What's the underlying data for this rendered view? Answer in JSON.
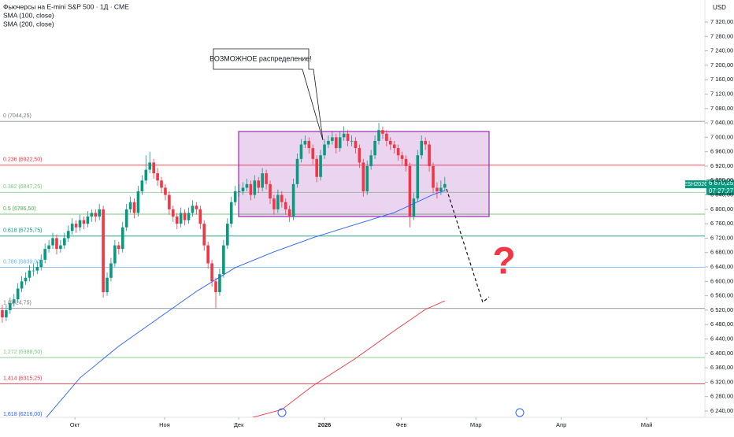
{
  "chart_data": {
    "type": "candlestick",
    "header": [
      "Фьючерсы на E-mini S&P 500 · 1Д · CME",
      "SMA (100, close)",
      "SMA (200, close)"
    ],
    "currency": "USD",
    "symbol": "ESH2026",
    "last_price_label": "6 870,25",
    "countdown": "07:27:27",
    "annotation": "ВОЗМОЖНОЕ распределение!",
    "question": "?",
    "xlim": [
      -0.6,
      181
    ],
    "xticks": [
      {
        "value": 18.7,
        "label": "Окт"
      },
      {
        "value": 41.8,
        "label": "Ноя"
      },
      {
        "value": 60.9,
        "label": "Дек"
      },
      {
        "value": 83,
        "label": "2026"
      },
      {
        "value": 102.8,
        "label": "Фев"
      },
      {
        "value": 122,
        "label": "Мар"
      },
      {
        "value": 144,
        "label": "Апр"
      },
      {
        "value": 166,
        "label": "Май"
      }
    ],
    "ylim": [
      6240,
      7320
    ],
    "yticks": [
      {
        "value": 7320,
        "label": "7 320,00"
      },
      {
        "value": 7280,
        "label": "7 280,00"
      },
      {
        "value": 7240,
        "label": "7 240,00"
      },
      {
        "value": 7200,
        "label": "7 200,00"
      },
      {
        "value": 7160,
        "label": "7 160,00"
      },
      {
        "value": 7120,
        "label": "7 120,00"
      },
      {
        "value": 7080,
        "label": "7 080,00"
      },
      {
        "value": 7040,
        "label": "7 040,00"
      },
      {
        "value": 7000,
        "label": "7 000,00"
      },
      {
        "value": 6960,
        "label": "6 960,00"
      },
      {
        "value": 6920,
        "label": "6 920,00"
      },
      {
        "value": 6880,
        "label": "6 880,00"
      },
      {
        "value": 6840,
        "label": "6 840,00"
      },
      {
        "value": 6800,
        "label": "6 800,00"
      },
      {
        "value": 6760,
        "label": "6 760,00"
      },
      {
        "value": 6720,
        "label": "6 720,00"
      },
      {
        "value": 6680,
        "label": "6 680,00"
      },
      {
        "value": 6640,
        "label": "6 640,00"
      },
      {
        "value": 6600,
        "label": "6 600,00"
      },
      {
        "value": 6560,
        "label": "6 560,00"
      },
      {
        "value": 6520,
        "label": "6 520,00"
      },
      {
        "value": 6480,
        "label": "6 480,00"
      },
      {
        "value": 6440,
        "label": "6 440,00"
      },
      {
        "value": 6400,
        "label": "6 400,00"
      },
      {
        "value": 6360,
        "label": "6 360,00"
      },
      {
        "value": 6320,
        "label": "6 320,00"
      },
      {
        "value": 6280,
        "label": "6 280,00"
      },
      {
        "value": 6240,
        "label": "6 240,00"
      }
    ],
    "up_color": "#089981",
    "down_color": "#f23645",
    "candles": [
      [
        6520,
        6535,
        6485,
        6500
      ],
      [
        6500,
        6535,
        6490,
        6520
      ],
      [
        6520,
        6555,
        6510,
        6540
      ],
      [
        6540,
        6565,
        6530,
        6550
      ],
      [
        6550,
        6595,
        6540,
        6580
      ],
      [
        6580,
        6615,
        6570,
        6600
      ],
      [
        6600,
        6625,
        6590,
        6610
      ],
      [
        6610,
        6645,
        6600,
        6630
      ],
      [
        6630,
        6650,
        6615,
        6630
      ],
      [
        6630,
        6655,
        6620,
        6640
      ],
      [
        6640,
        6675,
        6630,
        6660
      ],
      [
        6660,
        6705,
        6650,
        6690
      ],
      [
        6690,
        6715,
        6680,
        6700
      ],
      [
        6700,
        6735,
        6690,
        6720
      ],
      [
        6720,
        6730,
        6675,
        6690
      ],
      [
        6690,
        6715,
        6680,
        6700
      ],
      [
        6700,
        6735,
        6690,
        6720
      ],
      [
        6720,
        6755,
        6710,
        6740
      ],
      [
        6740,
        6775,
        6730,
        6760
      ],
      [
        6760,
        6770,
        6735,
        6750
      ],
      [
        6750,
        6785,
        6740,
        6770
      ],
      [
        6770,
        6780,
        6745,
        6760
      ],
      [
        6760,
        6795,
        6750,
        6780
      ],
      [
        6780,
        6800,
        6765,
        6790
      ],
      [
        6790,
        6800,
        6765,
        6780
      ],
      [
        6780,
        6815,
        6770,
        6800
      ],
      [
        6800,
        6810,
        6555,
        6570
      ],
      [
        6570,
        6625,
        6560,
        6610
      ],
      [
        6610,
        6665,
        6600,
        6650
      ],
      [
        6650,
        6715,
        6640,
        6700
      ],
      [
        6700,
        6710,
        6675,
        6690
      ],
      [
        6690,
        6765,
        6680,
        6750
      ],
      [
        6750,
        6815,
        6740,
        6800
      ],
      [
        6800,
        6835,
        6790,
        6820
      ],
      [
        6820,
        6830,
        6775,
        6790
      ],
      [
        6790,
        6865,
        6780,
        6850
      ],
      [
        6850,
        6895,
        6840,
        6880
      ],
      [
        6880,
        6950,
        6870,
        6910
      ],
      [
        6910,
        6960,
        6900,
        6930
      ],
      [
        6930,
        6940,
        6885,
        6900
      ],
      [
        6900,
        6915,
        6865,
        6880
      ],
      [
        6880,
        6890,
        6845,
        6860
      ],
      [
        6860,
        6870,
        6825,
        6840
      ],
      [
        6840,
        6850,
        6785,
        6800
      ],
      [
        6800,
        6810,
        6765,
        6780
      ],
      [
        6780,
        6790,
        6745,
        6760
      ],
      [
        6760,
        6805,
        6750,
        6790
      ],
      [
        6790,
        6800,
        6755,
        6770
      ],
      [
        6770,
        6805,
        6760,
        6790
      ],
      [
        6790,
        6825,
        6780,
        6810
      ],
      [
        6810,
        6820,
        6785,
        6800
      ],
      [
        6800,
        6810,
        6745,
        6760
      ],
      [
        6760,
        6770,
        6685,
        6700
      ],
      [
        6700,
        6710,
        6635,
        6650
      ],
      [
        6650,
        6660,
        6585,
        6600
      ],
      [
        6600,
        6610,
        6525,
        6570
      ],
      [
        6570,
        6635,
        6560,
        6620
      ],
      [
        6620,
        6715,
        6610,
        6700
      ],
      [
        6700,
        6775,
        6690,
        6760
      ],
      [
        6760,
        6835,
        6750,
        6820
      ],
      [
        6820,
        6865,
        6810,
        6850
      ],
      [
        6850,
        6870,
        6835,
        6850
      ],
      [
        6850,
        6875,
        6840,
        6860
      ],
      [
        6860,
        6885,
        6850,
        6870
      ],
      [
        6870,
        6880,
        6825,
        6840
      ],
      [
        6840,
        6895,
        6830,
        6880
      ],
      [
        6880,
        6890,
        6845,
        6860
      ],
      [
        6860,
        6915,
        6850,
        6900
      ],
      [
        6900,
        6910,
        6855,
        6870
      ],
      [
        6870,
        6880,
        6815,
        6830
      ],
      [
        6830,
        6840,
        6785,
        6800
      ],
      [
        6800,
        6855,
        6790,
        6840
      ],
      [
        6840,
        6850,
        6805,
        6820
      ],
      [
        6820,
        6830,
        6785,
        6800
      ],
      [
        6800,
        6810,
        6765,
        6780
      ],
      [
        6780,
        6885,
        6770,
        6870
      ],
      [
        6870,
        6955,
        6860,
        6940
      ],
      [
        6940,
        6995,
        6930,
        6980
      ],
      [
        6980,
        7005,
        6970,
        6990
      ],
      [
        6990,
        7000,
        6955,
        6970
      ],
      [
        6970,
        6980,
        6925,
        6940
      ],
      [
        6940,
        6950,
        6875,
        6890
      ],
      [
        6890,
        6965,
        6880,
        6950
      ],
      [
        6950,
        6995,
        6940,
        6980
      ],
      [
        6980,
        7005,
        6970,
        6990
      ],
      [
        6990,
        7015,
        6980,
        7000
      ],
      [
        7000,
        7010,
        6955,
        6970
      ],
      [
        6970,
        7015,
        6960,
        7000
      ],
      [
        7000,
        7030,
        6990,
        7010
      ],
      [
        7010,
        7020,
        6975,
        6990
      ],
      [
        6990,
        7005,
        6975,
        6990
      ],
      [
        6990,
        7000,
        6955,
        6970
      ],
      [
        6970,
        6980,
        6915,
        6930
      ],
      [
        6930,
        6940,
        6835,
        6850
      ],
      [
        6850,
        6935,
        6840,
        6920
      ],
      [
        6920,
        6965,
        6910,
        6950
      ],
      [
        6950,
        7005,
        6940,
        6990
      ],
      [
        6990,
        7040,
        6980,
        7020
      ],
      [
        7020,
        7030,
        6995,
        7010
      ],
      [
        7010,
        7020,
        6975,
        6990
      ],
      [
        6990,
        7000,
        6965,
        6980
      ],
      [
        6980,
        6990,
        6955,
        6970
      ],
      [
        6970,
        6980,
        6935,
        6950
      ],
      [
        6950,
        6960,
        6925,
        6940
      ],
      [
        6940,
        6950,
        6905,
        6920
      ],
      [
        6920,
        6930,
        6750,
        6780
      ],
      [
        6780,
        6845,
        6770,
        6830
      ],
      [
        6830,
        6965,
        6820,
        6950
      ],
      [
        6950,
        7005,
        6940,
        6990
      ],
      [
        6990,
        7000,
        6965,
        6980
      ],
      [
        6980,
        6990,
        6905,
        6920
      ],
      [
        6920,
        6930,
        6845,
        6860
      ],
      [
        6860,
        6875,
        6830,
        6850
      ],
      [
        6850,
        6880,
        6840,
        6860
      ],
      [
        6860,
        6890,
        6850,
        6870.25
      ]
    ],
    "series": [
      {
        "name": "SMA (100, close)",
        "color": "#2962ff",
        "x": [
          11,
          20,
          30,
          40,
          50,
          60,
          70,
          80,
          91,
          101,
          111,
          114
        ],
        "values": [
          6218,
          6332,
          6420,
          6496,
          6572,
          6638,
          6682,
          6721,
          6758,
          6791,
          6841,
          6852
        ]
      },
      {
        "name": "SMA (200, close)",
        "color": "#f23645",
        "x": [
          63,
          72,
          80,
          91,
          101,
          109,
          114
        ],
        "values": [
          6218,
          6244,
          6310,
          6386,
          6463,
          6522,
          6546
        ]
      }
    ],
    "levels": [
      {
        "label": "0 (7044,25)",
        "value": 7044.25,
        "color": "#787b86"
      },
      {
        "label": "0.236 (6922,50)",
        "value": 6922.5,
        "color": "#f23645"
      },
      {
        "label": "0.382 (6847,25)",
        "value": 6847.25,
        "color": "#81c784"
      },
      {
        "label": "0.5 (6786,50)",
        "value": 6786.5,
        "color": "#4caf50"
      },
      {
        "label": "0.618 (6725,75)",
        "value": 6725.75,
        "color": "#089981"
      },
      {
        "label": "0.786 (6639,00)",
        "value": 6639,
        "color": "#64b5f6"
      },
      {
        "label": "1 (6524,75)",
        "value": 6524.75,
        "color": "#787b86"
      },
      {
        "label": "1,272 (6388,50)",
        "value": 6388.5,
        "color": "#81c784"
      },
      {
        "label": "1,414 (6315,25)",
        "value": 6315.25,
        "color": "#f23645"
      },
      {
        "label": "1,618 (6216,00)",
        "value": 6216,
        "color": "#2962ff"
      }
    ]
  }
}
